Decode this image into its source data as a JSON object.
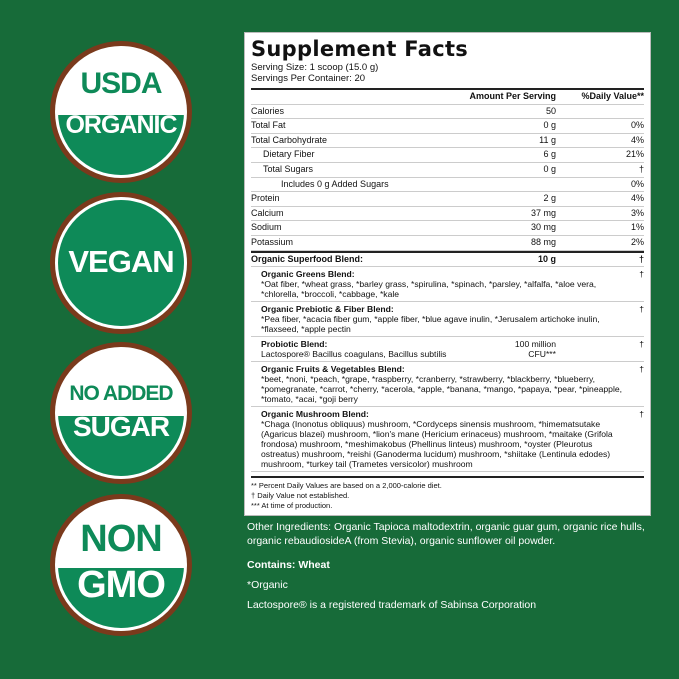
{
  "badges": [
    {
      "top": "USDA",
      "bottom": "ORGANIC"
    },
    {
      "text": "VEGAN"
    },
    {
      "top": "NO ADDED",
      "bottom": "SUGAR"
    },
    {
      "top": "NON",
      "bottom": "GMO"
    }
  ],
  "facts": {
    "title": "Supplement Facts",
    "serving_size": "Serving Size: 1 scoop (15.0 g)",
    "servings_per_container": "Servings Per Container: 20",
    "header": {
      "amount": "Amount Per Serving",
      "dv": "%Daily Value**"
    },
    "rows": [
      {
        "name": "Calories",
        "amount": "50",
        "dv": ""
      },
      {
        "name": "Total Fat",
        "amount": "0 g",
        "dv": "0%"
      },
      {
        "name": "Total Carbohydrate",
        "amount": "11 g",
        "dv": "4%"
      },
      {
        "name": "Dietary Fiber",
        "amount": "6 g",
        "dv": "21%"
      },
      {
        "name": "Total Sugars",
        "amount": "0 g",
        "dv": "†"
      },
      {
        "name": "Includes 0 g Added Sugars",
        "amount": "",
        "dv": "0%"
      },
      {
        "name": "Protein",
        "amount": "2 g",
        "dv": "4%"
      },
      {
        "name": "Calcium",
        "amount": "37 mg",
        "dv": "3%"
      },
      {
        "name": "Sodium",
        "amount": "30 mg",
        "dv": "1%"
      },
      {
        "name": "Potassium",
        "amount": "88 mg",
        "dv": "2%"
      }
    ],
    "superfood": {
      "name": "Organic Superfood Blend:",
      "amount": "10 g",
      "dv": "†"
    },
    "blends": [
      {
        "name": "Organic Greens Blend:",
        "text": "*Oat fiber, *wheat grass, *barley grass, *spirulina, *spinach, *parsley, *alfalfa, *aloe vera, *chlorella, *broccoli, *cabbage, *kale",
        "amount": "",
        "dv": "†"
      },
      {
        "name": "Organic Prebiotic & Fiber Blend:",
        "text": "*Pea fiber, *acacia fiber gum, *apple fiber, *blue agave inulin, *Jerusalem artichoke inulin, *flaxseed, *apple pectin",
        "amount": "",
        "dv": "†"
      },
      {
        "name": "Probiotic Blend:",
        "text": "Lactospore® Bacillus coagulans, Bacillus subtilis",
        "amount": "100 million CFU***",
        "dv": "†"
      },
      {
        "name": "Organic Fruits & Vegetables Blend:",
        "text": "*beet, *noni, *peach, *grape, *raspberry, *cranberry, *strawberry, *blackberry, *blueberry, *pomegranate, *carrot, *cherry, *acerola, *apple, *banana, *mango, *papaya, *pear, *pineapple, *tomato, *acai, *goji berry",
        "amount": "",
        "dv": "†"
      },
      {
        "name": "Organic Mushroom Blend:",
        "text": "*Chaga (Inonotus obliquus) mushroom, *Cordyceps sinensis mushroom, *himematsutake (Agaricus blazei) mushroom, *lion's mane (Hericium erinaceus) mushroom, *maitake (Grifola frondosa) mushroom, *meshimakobus (Phellinus linteus) mushroom, *oyster (Pleurotus ostreatus) mushroom, *reishi (Ganoderma lucidum) mushroom, *shiitake (Lentinula edodes) mushroom, *turkey tail (Trametes versicolor) mushroom",
        "amount": "",
        "dv": "†"
      }
    ],
    "footnotes": [
      "** Percent Daily Values are based on a 2,000-calorie diet.",
      "† Daily Value not established.",
      "*** At time of production."
    ]
  },
  "other_ingredients": "Other Ingredients: Organic Tapioca maltodextrin, organic guar gum, organic rice hulls, organic rebaudiosideA (from Stevia), organic sunflower oil powder.",
  "contains": "Contains: Wheat",
  "organic_note": "*Organic",
  "trademark": "Lactospore® is a registered trademark of Sabinsa Corporation"
}
